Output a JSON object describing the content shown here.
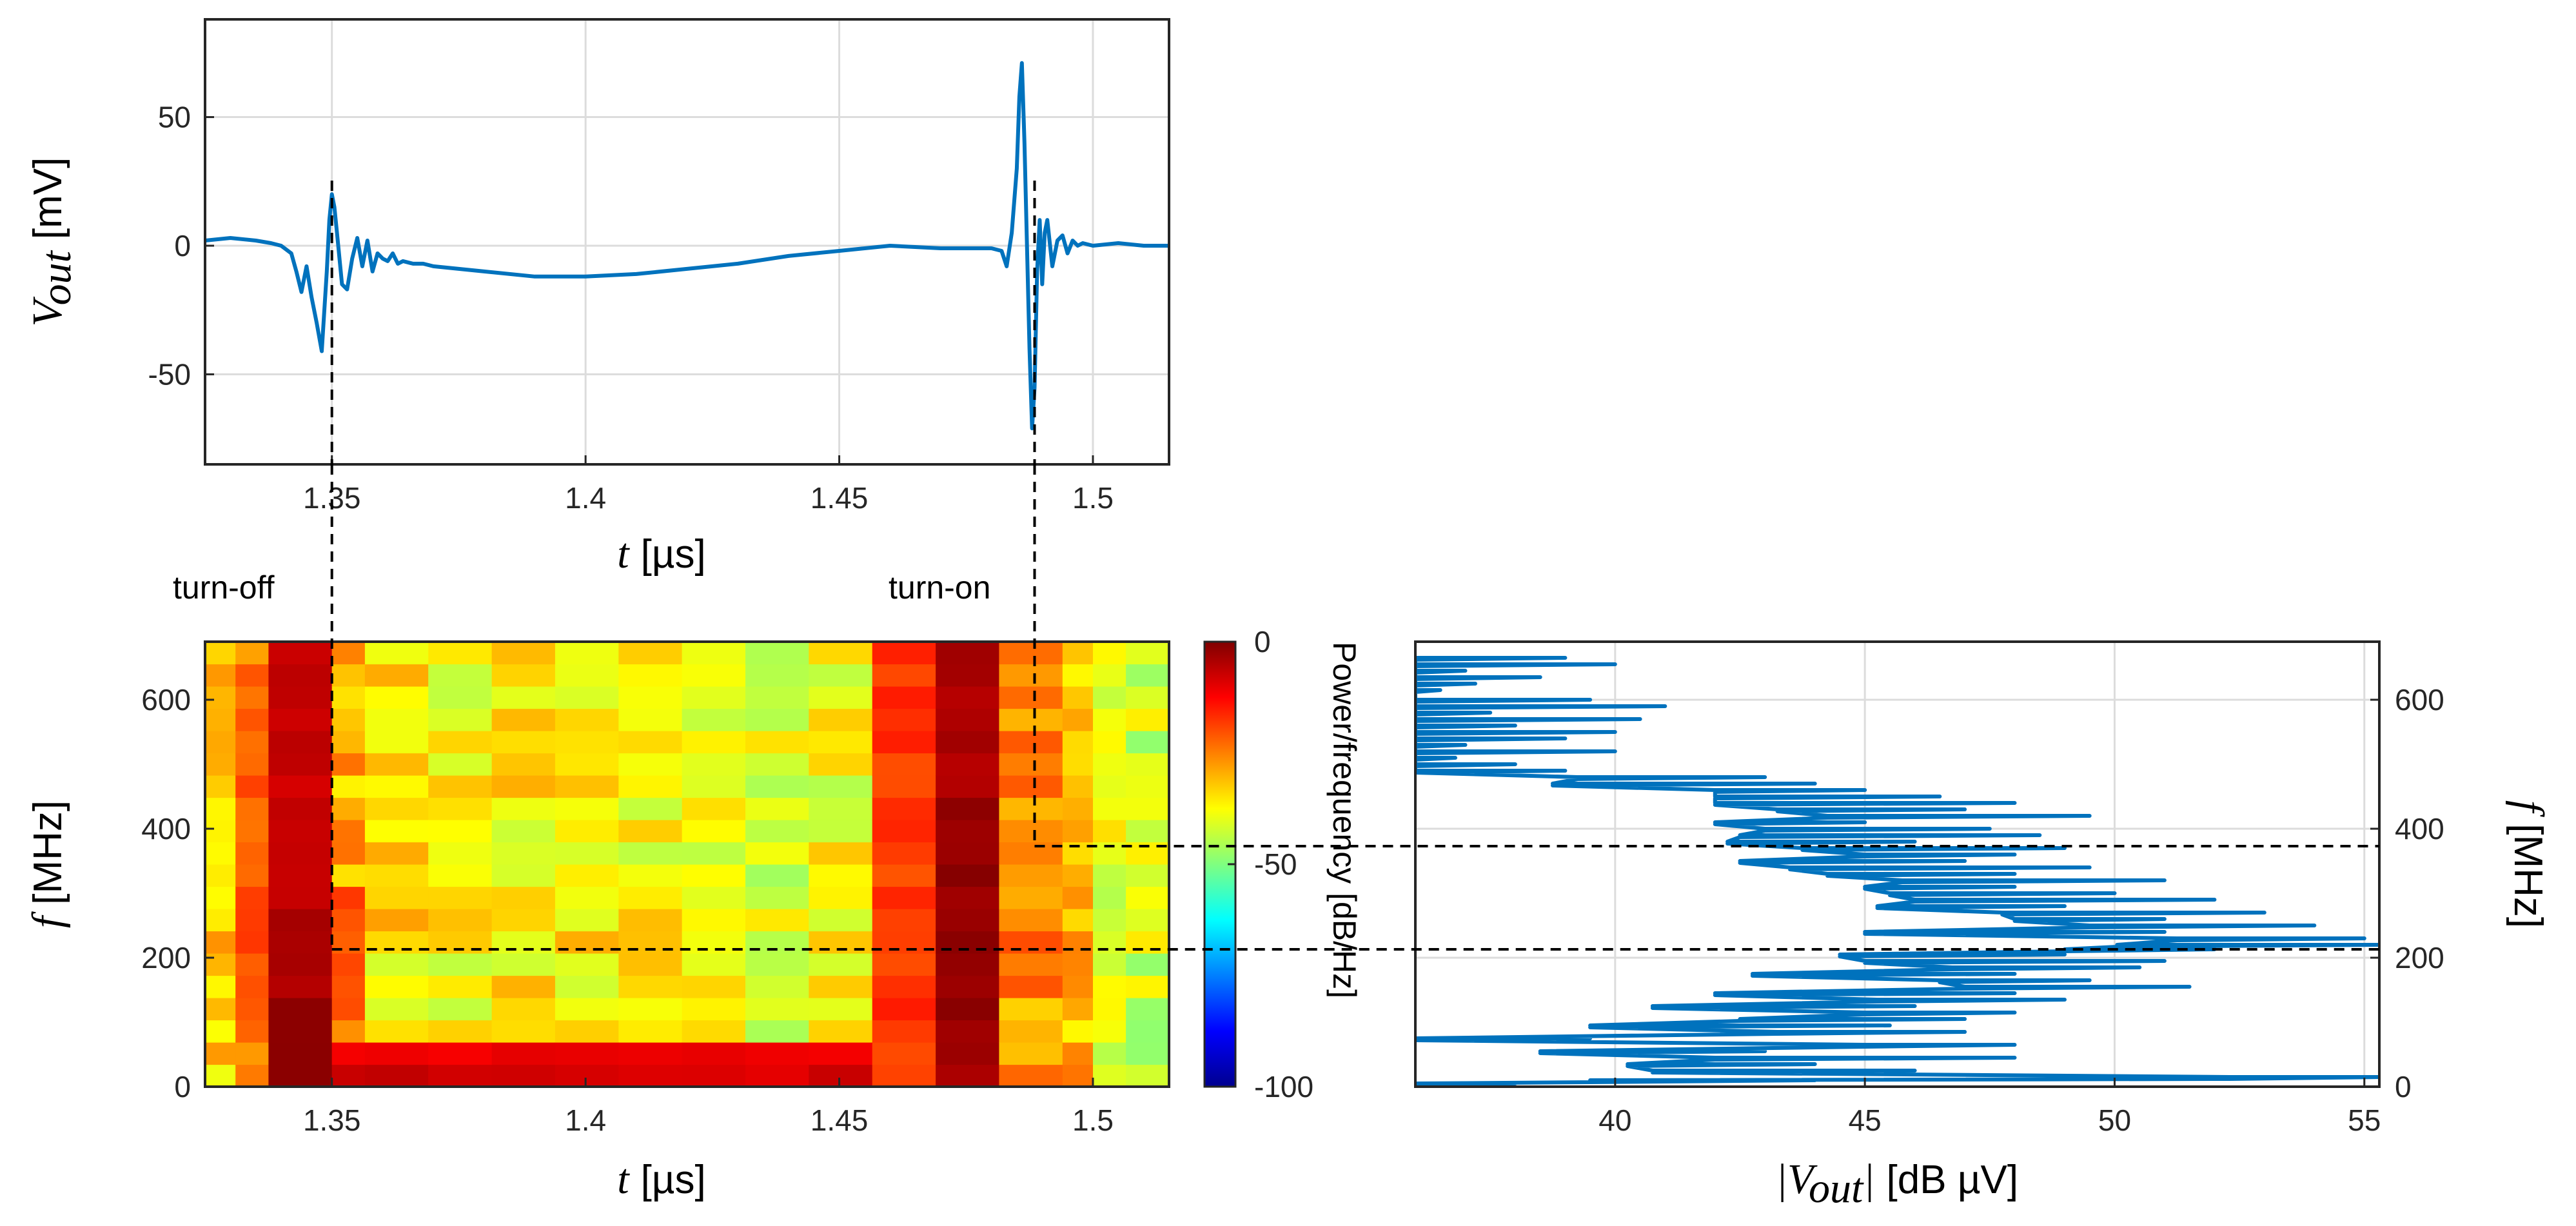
{
  "chart_data": [
    {
      "id": "time_domain",
      "type": "line",
      "ylabel_var": "V",
      "ylabel_sub": "out",
      "ylabel_unit": "[mV]",
      "xlabel_var": "t",
      "xlabel_unit": "[µs]",
      "xlim": [
        1.325,
        1.515
      ],
      "ylim": [
        -85,
        88
      ],
      "xticks": [
        1.35,
        1.4,
        1.45,
        1.5
      ],
      "xtick_labels": [
        "1.35",
        "1.4",
        "1.45",
        "1.5"
      ],
      "yticks": [
        50,
        0,
        -50
      ],
      "ytick_labels": [
        "50",
        "0",
        "-50"
      ],
      "grid": true,
      "line_color": "#0072BD",
      "x": [
        1.325,
        1.33,
        1.335,
        1.338,
        1.34,
        1.342,
        1.343,
        1.344,
        1.345,
        1.346,
        1.347,
        1.348,
        1.349,
        1.3495,
        1.35,
        1.3505,
        1.351,
        1.352,
        1.353,
        1.354,
        1.355,
        1.356,
        1.357,
        1.358,
        1.359,
        1.36,
        1.361,
        1.362,
        1.363,
        1.364,
        1.366,
        1.368,
        1.37,
        1.375,
        1.38,
        1.39,
        1.4,
        1.41,
        1.42,
        1.43,
        1.44,
        1.45,
        1.46,
        1.47,
        1.475,
        1.48,
        1.482,
        1.483,
        1.484,
        1.485,
        1.4855,
        1.486,
        1.4865,
        1.487,
        1.4875,
        1.488,
        1.4885,
        1.489,
        1.4895,
        1.49,
        1.4905,
        1.491,
        1.492,
        1.493,
        1.494,
        1.495,
        1.496,
        1.497,
        1.498,
        1.5,
        1.505,
        1.51,
        1.515
      ],
      "y": [
        2,
        3,
        2,
        1,
        0,
        -3,
        -10,
        -18,
        -8,
        -20,
        -30,
        -41,
        -10,
        10,
        20,
        15,
        5,
        -15,
        -17,
        -5,
        3,
        -8,
        2,
        -10,
        -3,
        -5,
        -6,
        -3,
        -7,
        -6,
        -7,
        -7,
        -8,
        -9,
        -10,
        -12,
        -12,
        -11,
        -9,
        -7,
        -4,
        -2,
        0,
        -1,
        -1,
        -1,
        -2,
        -8,
        5,
        30,
        58,
        71,
        40,
        0,
        -40,
        -71,
        -55,
        -10,
        10,
        -15,
        5,
        10,
        -8,
        2,
        4,
        -3,
        2,
        0,
        1,
        0,
        1,
        0,
        0
      ],
      "vlines_x": [
        1.35,
        1.4885
      ]
    },
    {
      "id": "spectrogram",
      "type": "heatmap",
      "ylabel_var": "f",
      "ylabel_unit": "[MHz]",
      "xlabel_var": "t",
      "xlabel_unit": "[µs]",
      "xlim": [
        1.325,
        1.515
      ],
      "ylim": [
        0,
        690
      ],
      "xticks": [
        1.35,
        1.4,
        1.45,
        1.5
      ],
      "xtick_labels": [
        "1.35",
        "1.4",
        "1.45",
        "1.5"
      ],
      "yticks": [
        0,
        200,
        400,
        600
      ],
      "ytick_labels": [
        "0",
        "200",
        "400",
        "600"
      ],
      "x_edges": [
        1.325,
        1.331,
        1.3375,
        1.35,
        1.3565,
        1.369,
        1.3815,
        1.394,
        1.4065,
        1.419,
        1.4315,
        1.444,
        1.4565,
        1.469,
        1.4815,
        1.494,
        1.5,
        1.5065,
        1.515
      ],
      "row_height": 34.5,
      "colorbar": {
        "label": "Power/frequency [dB/Hz]",
        "range": [
          -100,
          0
        ],
        "ticks": [
          0,
          -50,
          -100
        ],
        "tick_labels": [
          "0",
          "-50",
          "-100"
        ]
      },
      "annotations": [
        "turn-off",
        "turn-on"
      ],
      "hlines_y": [
        373,
        213
      ]
    },
    {
      "id": "spectrum",
      "type": "line",
      "xlabel_var": "|V",
      "xlabel_sub": "out",
      "xlabel_close": "|",
      "xlabel_unit": "[dB µV]",
      "ylabel_var": "f",
      "ylabel_unit": "[MHz]",
      "xlim": [
        36,
        55.3
      ],
      "ylim": [
        0,
        690
      ],
      "xticks": [
        40,
        45,
        50,
        55
      ],
      "xtick_labels": [
        "40",
        "45",
        "50",
        "55"
      ],
      "yticks": [
        0,
        200,
        400,
        600
      ],
      "ytick_labels": [
        "0",
        "200",
        "400",
        "600"
      ],
      "grid": true,
      "line_color": "#0072BD",
      "f": [
        665,
        655,
        645,
        635,
        625,
        615,
        600,
        590,
        580,
        570,
        560,
        550,
        540,
        530,
        520,
        510,
        500,
        490,
        480,
        470,
        460,
        450,
        440,
        430,
        420,
        410,
        400,
        390,
        380,
        370,
        360,
        350,
        340,
        330,
        320,
        310,
        300,
        290,
        280,
        270,
        260,
        250,
        240,
        230,
        220,
        213,
        205,
        195,
        185,
        175,
        165,
        155,
        145,
        135,
        125,
        115,
        105,
        95,
        85,
        75,
        65,
        55,
        45,
        35,
        25,
        15,
        10,
        5
      ],
      "v": [
        39,
        40,
        37,
        38.5,
        37.2,
        36.5,
        39.5,
        41,
        37.5,
        40.5,
        38,
        40,
        39,
        37,
        40,
        36.8,
        38,
        39,
        43,
        44,
        45,
        46.5,
        48,
        47,
        49.5,
        45,
        47.5,
        48.5,
        46,
        49,
        48,
        47,
        49.5,
        48,
        51,
        48,
        50,
        52,
        49,
        53,
        51,
        54,
        51,
        55,
        55.3,
        52,
        49,
        51,
        50.5,
        48,
        49.5,
        51.5,
        48,
        49,
        46,
        48,
        47,
        45.5,
        47,
        39.5,
        48,
        43,
        48,
        44,
        46,
        55.3,
        44,
        38
      ]
    }
  ]
}
